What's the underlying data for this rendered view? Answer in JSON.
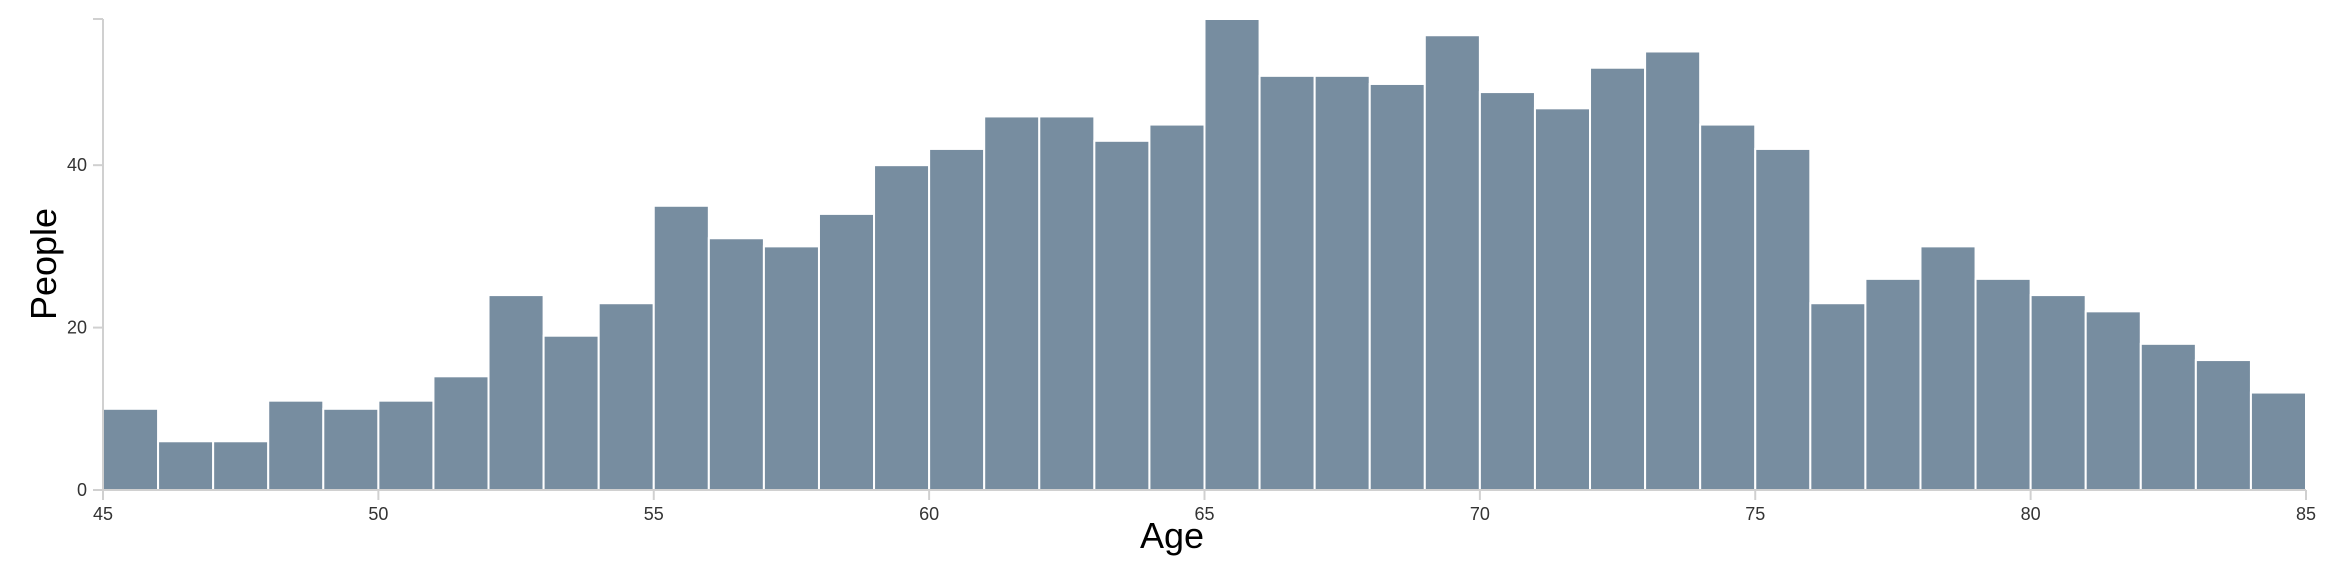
{
  "chart_data": {
    "type": "bar",
    "title": "",
    "xlabel": "Age",
    "ylabel": "People",
    "bin_start": 45,
    "bin_width": 1,
    "x": [
      45,
      46,
      47,
      48,
      49,
      50,
      51,
      52,
      53,
      54,
      55,
      56,
      57,
      58,
      59,
      60,
      61,
      62,
      63,
      64,
      65,
      66,
      67,
      68,
      69,
      70,
      71,
      72,
      73,
      74,
      75,
      76,
      77,
      78,
      79,
      80,
      81,
      82,
      83,
      84
    ],
    "values": [
      10,
      6,
      6,
      11,
      10,
      11,
      14,
      24,
      19,
      23,
      35,
      31,
      30,
      34,
      40,
      42,
      46,
      46,
      43,
      45,
      58,
      51,
      51,
      50,
      56,
      49,
      47,
      52,
      54,
      45,
      42,
      23,
      26,
      30,
      26,
      24,
      22,
      18,
      16,
      12
    ],
    "xlim": [
      45,
      85
    ],
    "ylim": [
      0,
      58
    ],
    "xticks": [
      "45",
      "50",
      "55",
      "60",
      "65",
      "70",
      "75",
      "80",
      "85"
    ],
    "xtick_values": [
      45,
      50,
      55,
      60,
      65,
      70,
      75,
      80,
      85
    ],
    "yticks": [
      "0",
      "20",
      "40"
    ],
    "ytick_values": [
      0,
      20,
      40
    ],
    "grid": false,
    "legend": "none",
    "bar_color": "#778da0"
  }
}
